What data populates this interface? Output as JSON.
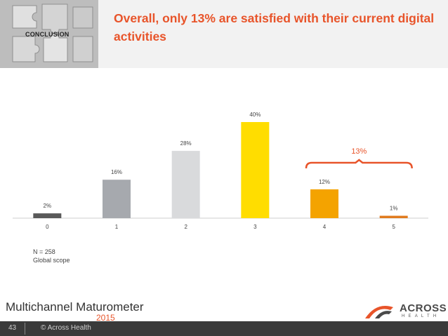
{
  "header": {
    "badge": "CONCLUSION",
    "title": "Overall, only 13% are satisfied with their current digital activities"
  },
  "chart_data": {
    "type": "bar",
    "categories": [
      "0",
      "1",
      "2",
      "3",
      "4",
      "5"
    ],
    "values": [
      2,
      16,
      28,
      40,
      12,
      1
    ],
    "value_labels": [
      "2%",
      "16%",
      "28%",
      "40%",
      "12%",
      "1%"
    ],
    "colors": [
      "#595959",
      "#a6a9ae",
      "#d9dadc",
      "#ffdd00",
      "#f4a300",
      "#e07b1f"
    ],
    "ylim": [
      0,
      40
    ],
    "title": "",
    "xlabel": "",
    "ylabel": "",
    "bracket": {
      "from_category": "4",
      "to_category": "5",
      "label": "13%",
      "color": "#e8542a"
    }
  },
  "notes": {
    "sample": "N = 258",
    "scope": "Global scope"
  },
  "branding": {
    "name": "Multichannel Maturometer",
    "year": "2015",
    "logo_text": "ACROSS",
    "logo_sub": "HEALTH"
  },
  "footer": {
    "page": "43",
    "copyright": "© Across Health"
  }
}
